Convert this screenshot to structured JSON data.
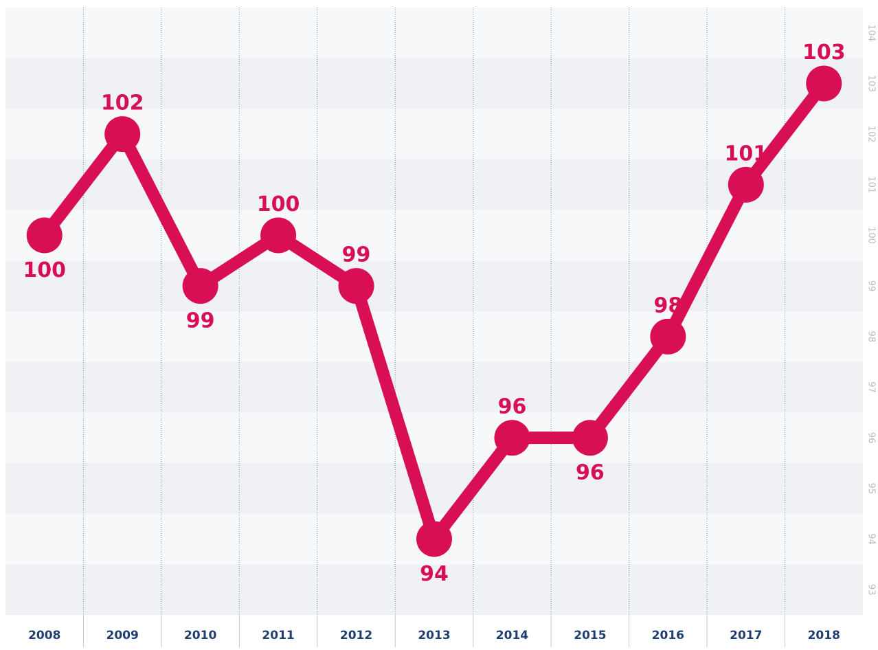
{
  "chart_data": {
    "type": "line",
    "categories": [
      "2008",
      "2009",
      "2010",
      "2011",
      "2012",
      "2013",
      "2014",
      "2015",
      "2016",
      "2017",
      "2018"
    ],
    "series": [
      {
        "color": "#d80f55",
        "values": [
          100,
          102,
          99,
          100,
          99,
          94,
          96,
          96,
          98,
          101,
          103
        ]
      }
    ],
    "ylim": [
      92.5,
      104.5
    ],
    "yticks": [
      93,
      94,
      95,
      96,
      97,
      98,
      99,
      100,
      101,
      102,
      103,
      104
    ],
    "grid": true
  }
}
